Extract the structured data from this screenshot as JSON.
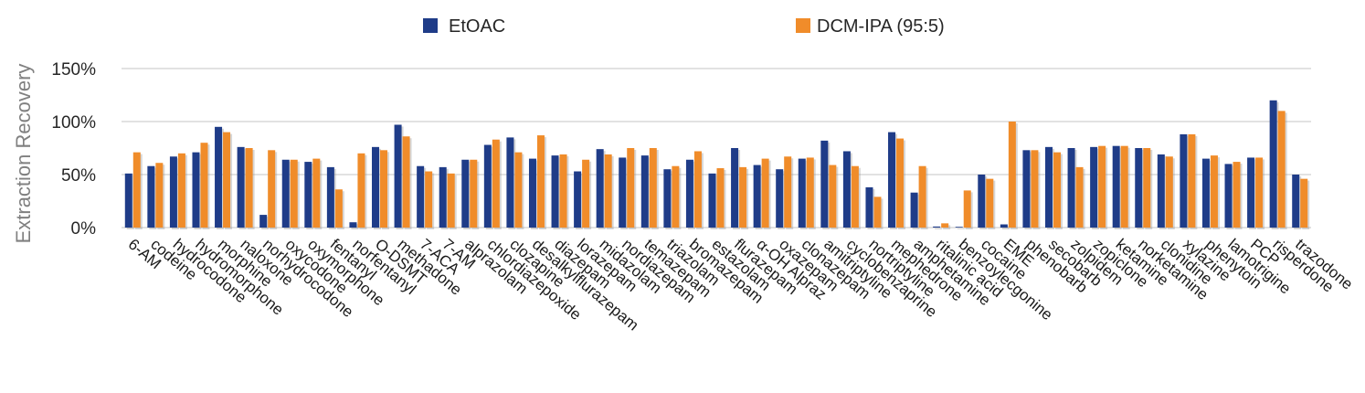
{
  "chart_data": {
    "type": "bar",
    "title": "",
    "xlabel": "",
    "ylabel": "Extraction Recovery",
    "ylim": [
      0,
      150
    ],
    "yticks": [
      0,
      50,
      100,
      150
    ],
    "ytick_labels": [
      "0%",
      "50%",
      "100%",
      "150%"
    ],
    "grid": true,
    "legend_position": "top",
    "categories": [
      "6-AM",
      "codeine",
      "hydrocodone",
      "hydromorphone",
      "morphine",
      "naloxone",
      "norhydrocodone",
      "oxycodone",
      "oxymorphone",
      "fentanyl",
      "norfentanyl",
      "O-DSMT",
      "methadone",
      "7-ACA",
      "7-AM",
      "alprazolam",
      "chlordiazepoxide",
      "clozapine",
      "desalkylflurazepam",
      "diazepam",
      "lorazepam",
      "midazolam",
      "nordiazepam",
      "temazepam",
      "triazolam",
      "bromazepam",
      "estazolam",
      "flurazepam",
      "α-OH Alpraz",
      "oxazepam",
      "clonazepam",
      "amitriptyline",
      "cyclobenzaprine",
      "nortriptyline",
      "mephedrone",
      "amphetamine",
      "ritalinic acid",
      "benzoylecgonine",
      "cocaine",
      "EME",
      "phenobarb",
      "secobarb",
      "zolpidem",
      "zopiclone",
      "ketamine",
      "norketamine",
      "clonidine",
      "xylazine",
      "phenytoin",
      "lamotrigine",
      "PCP",
      "risperdone",
      "trazodone"
    ],
    "series": [
      {
        "name": "EtOAC",
        "color": "#1f3c88",
        "values": [
          51,
          58,
          67,
          71,
          95,
          76,
          12,
          64,
          62,
          57,
          5,
          76,
          97,
          58,
          57,
          64,
          78,
          85,
          65,
          68,
          53,
          74,
          66,
          68,
          55,
          64,
          51,
          75,
          59,
          55,
          65,
          82,
          72,
          38,
          90,
          33,
          1,
          0,
          50,
          3,
          73,
          76,
          75,
          76,
          77,
          75,
          69,
          88,
          65,
          60,
          66,
          120,
          50
        ]
      },
      {
        "name": "DCM-IPA (95:5)",
        "color": "#f08c2a",
        "values": [
          71,
          61,
          70,
          80,
          90,
          75,
          73,
          64,
          65,
          36,
          70,
          73,
          86,
          53,
          51,
          64,
          83,
          71,
          87,
          69,
          64,
          69,
          75,
          75,
          58,
          72,
          56,
          57,
          65,
          67,
          66,
          59,
          58,
          29,
          84,
          58,
          4,
          35,
          46,
          100,
          73,
          71,
          57,
          77,
          77,
          75,
          67,
          88,
          68,
          62,
          66,
          110,
          46
        ]
      }
    ]
  }
}
